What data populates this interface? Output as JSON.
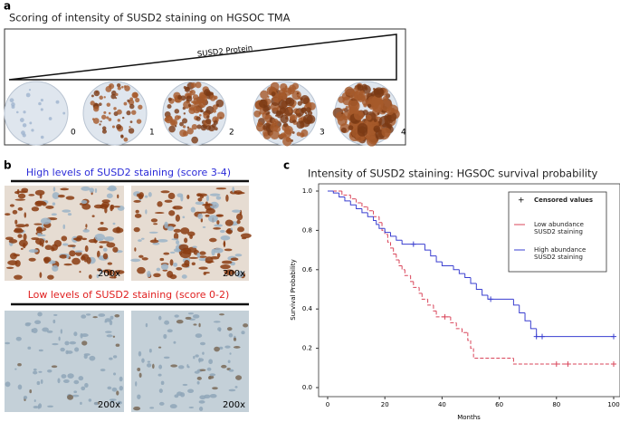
{
  "panel_a": {
    "letter": "a",
    "title": "Scoring of intensity of SUSD2 staining on HGSOC TMA",
    "gradient_label": "SUSD2 Protein",
    "scores": [
      "0",
      "1",
      "2",
      "3",
      "4"
    ]
  },
  "panel_b": {
    "letter": "b",
    "high_title": "High levels of SUSD2 staining (score 3-4)",
    "low_title": "Low levels of SUSD2 staining (score 0-2)",
    "magnifications": [
      "200x",
      "200x",
      "200x",
      "200x"
    ]
  },
  "panel_c": {
    "letter": "c"
  },
  "chart_data": {
    "type": "step",
    "title": "Intensity of SUSD2 staining: HGSOC survival probability",
    "x_label": "Months",
    "y_label": "Survival Probability",
    "xlim": [
      0,
      100
    ],
    "xticks": [
      0,
      20,
      40,
      60,
      80,
      100
    ],
    "ylim": [
      0,
      1
    ],
    "yticks": [
      {
        "value": 0,
        "label": "0.0"
      },
      0.2,
      0.4,
      0.6,
      0.8,
      {
        "value": 1,
        "label": "1.0"
      }
    ],
    "legend_title": "Censored values",
    "series": [
      {
        "name": "Low abundance SUSD2 staining",
        "color": "#d9455a",
        "dash": true,
        "x": [
          0,
          5,
          8,
          10,
          12,
          14,
          16,
          18,
          19,
          20,
          21,
          22,
          23,
          24,
          25,
          26,
          27,
          29,
          30,
          32,
          33,
          35,
          37,
          38,
          43,
          45,
          47,
          49,
          50,
          51,
          65,
          100
        ],
        "y": [
          1.0,
          0.98,
          0.96,
          0.94,
          0.92,
          0.9,
          0.87,
          0.84,
          0.8,
          0.78,
          0.74,
          0.71,
          0.68,
          0.65,
          0.62,
          0.6,
          0.57,
          0.54,
          0.51,
          0.48,
          0.45,
          0.42,
          0.39,
          0.36,
          0.33,
          0.3,
          0.28,
          0.24,
          0.2,
          0.15,
          0.12,
          0.12
        ],
        "censored": {
          "x": [
            41,
            80,
            84,
            100
          ],
          "y": [
            0.36,
            0.12,
            0.12,
            0.12
          ]
        }
      },
      {
        "name": "High abundance SUSD2 staining",
        "color": "#3a3fd0",
        "dash": false,
        "x": [
          0,
          2,
          4,
          6,
          8,
          10,
          12,
          14,
          16,
          17,
          18,
          20,
          22,
          24,
          26,
          34,
          36,
          38,
          40,
          44,
          46,
          48,
          50,
          52,
          54,
          56,
          65,
          67,
          69,
          71,
          73,
          100
        ],
        "y": [
          1.0,
          0.99,
          0.97,
          0.95,
          0.93,
          0.91,
          0.89,
          0.87,
          0.85,
          0.83,
          0.81,
          0.79,
          0.77,
          0.75,
          0.73,
          0.7,
          0.67,
          0.64,
          0.62,
          0.6,
          0.58,
          0.56,
          0.53,
          0.5,
          0.47,
          0.45,
          0.42,
          0.38,
          0.34,
          0.3,
          0.26,
          0.26
        ],
        "censored": {
          "x": [
            30,
            57,
            73,
            75,
            100
          ],
          "y": [
            0.73,
            0.45,
            0.26,
            0.26,
            0.26
          ]
        }
      }
    ]
  }
}
